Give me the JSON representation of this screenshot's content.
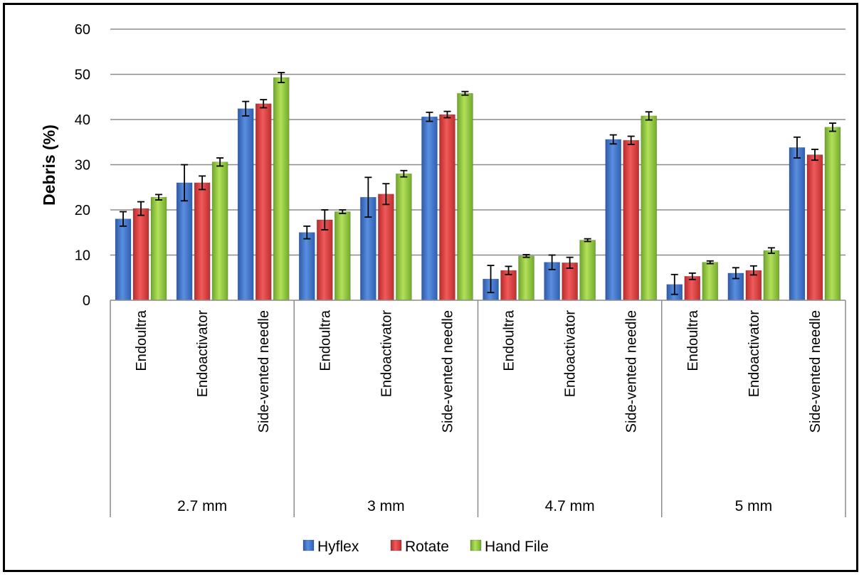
{
  "chart_data": {
    "type": "bar",
    "ylabel": "Debris (%)",
    "xlabel": "",
    "ylim": [
      0,
      60
    ],
    "yticks": [
      0,
      10,
      20,
      30,
      40,
      50,
      60
    ],
    "grid": true,
    "legend_position": "bottom",
    "groups": [
      {
        "label": "2.7 mm",
        "categories": [
          "Endoultra",
          "Endoactivator",
          "Side-vented needle"
        ]
      },
      {
        "label": "3 mm",
        "categories": [
          "Endoultra",
          "Endoactivator",
          "Side-vented needle"
        ]
      },
      {
        "label": "4.7 mm",
        "categories": [
          "Endoultra",
          "Endoactivator",
          "Side-vented needle"
        ]
      },
      {
        "label": "5 mm",
        "categories": [
          "Endoultra",
          "Endoactivator",
          "Side-vented needle"
        ]
      }
    ],
    "series": [
      {
        "name": "Hyflex",
        "color": "#3f73c8",
        "values": [
          18.0,
          26.0,
          42.4,
          15.0,
          22.8,
          40.6,
          4.7,
          8.4,
          35.6,
          3.5,
          6.0,
          33.8
        ],
        "errors": [
          1.6,
          4.0,
          1.6,
          1.4,
          4.4,
          1.0,
          3.0,
          1.6,
          1.0,
          2.2,
          1.2,
          2.3
        ]
      },
      {
        "name": "Rotate",
        "color": "#d94040",
        "values": [
          20.3,
          26.0,
          43.5,
          17.8,
          23.5,
          41.1,
          6.6,
          8.3,
          35.4,
          5.3,
          6.6,
          32.2
        ],
        "errors": [
          1.5,
          1.5,
          0.9,
          2.2,
          2.3,
          0.7,
          0.9,
          1.2,
          0.9,
          0.7,
          1.0,
          1.2
        ]
      },
      {
        "name": "Hand File",
        "color": "#8cc63f",
        "values": [
          22.8,
          30.6,
          49.3,
          19.6,
          28.0,
          45.8,
          9.8,
          13.3,
          40.8,
          8.4,
          11.0,
          38.3
        ],
        "errors": [
          0.6,
          0.9,
          1.1,
          0.4,
          0.7,
          0.4,
          0.3,
          0.3,
          0.9,
          0.3,
          0.6,
          0.9
        ]
      }
    ]
  }
}
